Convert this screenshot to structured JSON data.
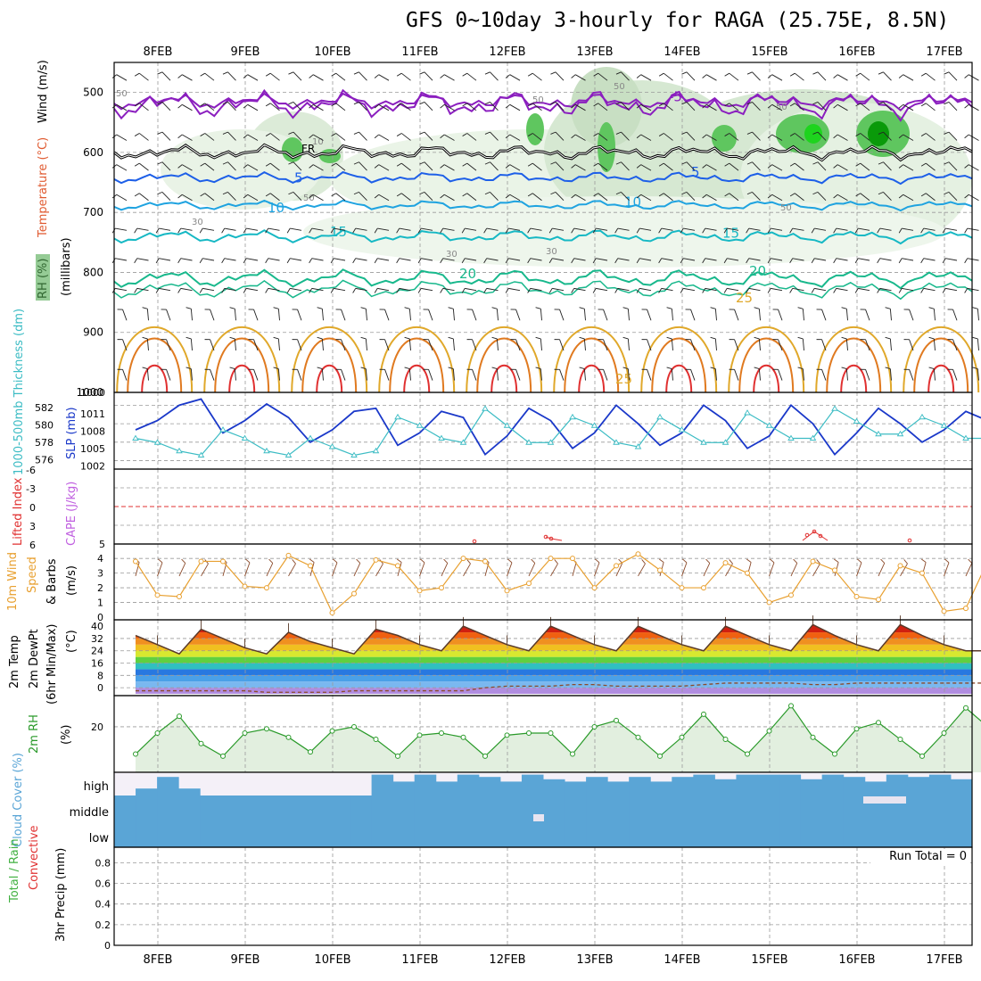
{
  "title": "GFS 0~10day 3-hourly for RAGA (25.75E, 8.5N)",
  "dates": [
    "8FEB",
    "9FEB",
    "10FEB",
    "11FEB",
    "12FEB",
    "13FEB",
    "14FEB",
    "15FEB",
    "16FEB",
    "17FEB"
  ],
  "colors": {
    "rh": "#4fa84f",
    "temp_cold": "#8b1fbf",
    "temp_5": "#1d5fe8",
    "temp_10": "#1fa3e0",
    "temp_15": "#16b8c4",
    "temp_20": "#18b88c",
    "temp_25": "#e0a82a",
    "temp_30": "#e07a20",
    "temp_35": "#e03030",
    "slp": "#1a38c9",
    "thickness": "#3cbcc4",
    "lifted": "#e03030",
    "cape": "#c060e0",
    "wind": "#e8a030",
    "barb": "#8b4a2a",
    "rh2m": "#2a9a2a",
    "cloud": "#5aa5d6",
    "precip": "#40b040"
  },
  "chart_data": [
    {
      "type": "heatmap",
      "panel": "upper-air",
      "ylabel_parts": [
        "RH (%)",
        "Temperature (°C)",
        "Wind (m/s)",
        "(millibars)"
      ],
      "yticks": [
        500,
        600,
        700,
        800,
        900,
        1000
      ],
      "ylim": [
        1000,
        450
      ],
      "isotherm_labels": [
        "-5",
        "5",
        "10",
        "15",
        "20",
        "25",
        "25"
      ],
      "rh_labels": [
        "50",
        "50",
        "50",
        "50",
        "30",
        "30",
        "30",
        "50",
        "50",
        "10"
      ],
      "freezing_label": "FR"
    },
    {
      "type": "line",
      "panel": "slp-thickness",
      "ylabel_left": "1000-500mb Thickness (dm)",
      "ylabel_right": "SLP (mb)",
      "left_ticks": [
        "582",
        "580",
        "578",
        "576"
      ],
      "right_ticks": [
        "1011",
        "1008",
        "1005",
        "1002"
      ],
      "slp_ylim": [
        1001.5,
        1012.5
      ],
      "thick_ylim": [
        575.5,
        583.5
      ],
      "x": [
        0.0,
        0.25,
        0.5,
        0.75,
        1.0,
        1.25,
        1.5,
        1.75,
        2.0,
        2.25,
        2.5,
        2.75,
        3.0,
        3.25,
        3.5,
        3.75,
        4.0,
        4.25,
        4.5,
        4.75,
        5.0,
        5.25,
        5.5,
        5.75,
        6.0,
        6.25,
        6.5,
        6.75,
        7.0,
        7.25,
        7.5,
        7.75,
        8.0,
        8.25,
        8.5,
        8.75,
        9.0,
        9.25,
        9.5,
        9.75
      ],
      "series": [
        {
          "name": "SLP",
          "values": [
            1007.0,
            1008.5,
            1011.0,
            1012.0,
            1006.5,
            1008.5,
            1011.2,
            1009.0,
            1005.0,
            1007.0,
            1010.0,
            1010.5,
            1004.5,
            1006.5,
            1010.0,
            1009.0,
            1003.0,
            1006.0,
            1010.5,
            1008.5,
            1004.0,
            1006.5,
            1011.0,
            1008.0,
            1004.5,
            1006.5,
            1011.0,
            1008.5,
            1004.0,
            1006.0,
            1011.0,
            1008.0,
            1003.0,
            1006.5,
            1010.5,
            1008.0,
            1005.0,
            1007.0,
            1010.0,
            1008.5
          ]
        },
        {
          "name": "Thickness",
          "values": [
            578.5,
            578.0,
            577.0,
            576.5,
            579.5,
            578.5,
            577.0,
            576.5,
            578.5,
            577.5,
            576.5,
            577.0,
            581.0,
            580.0,
            578.5,
            578.0,
            582.0,
            580.0,
            578.0,
            578.0,
            581.0,
            580.0,
            578.0,
            577.5,
            581.0,
            579.5,
            578.0,
            578.0,
            581.5,
            580.0,
            578.5,
            578.5,
            582.0,
            580.5,
            579.0,
            579.0,
            581.0,
            580.0,
            578.5,
            578.5
          ]
        }
      ]
    },
    {
      "type": "line",
      "panel": "stability",
      "ylabel_left": "Lifted Index",
      "ylabel_right": "CAPE (J/kg)",
      "left_ticks": [
        "-6",
        "-3",
        "0",
        "3",
        "6"
      ],
      "right_ticks": [
        "5"
      ],
      "lifted_reference": 0
    },
    {
      "type": "line",
      "panel": "wind10m",
      "ylabel": "10m Wind Speed & Barbs (m/s)",
      "yticks": [
        "4",
        "3",
        "2",
        "1",
        "0"
      ],
      "ylim": [
        0,
        4.8
      ],
      "x": [
        0.0,
        0.25,
        0.5,
        0.75,
        1.0,
        1.25,
        1.5,
        1.75,
        2.0,
        2.25,
        2.5,
        2.75,
        3.0,
        3.25,
        3.5,
        3.75,
        4.0,
        4.25,
        4.5,
        4.75,
        5.0,
        5.25,
        5.5,
        5.75,
        6.0,
        6.25,
        6.5,
        6.75,
        7.0,
        7.25,
        7.5,
        7.75,
        8.0,
        8.25,
        8.5,
        8.75,
        9.0,
        9.25,
        9.5,
        9.75
      ],
      "series": [
        {
          "name": "10m Wind Speed",
          "values": [
            3.8,
            1.5,
            1.4,
            3.8,
            3.8,
            2.1,
            2.0,
            4.2,
            3.5,
            0.3,
            1.6,
            3.9,
            3.5,
            1.8,
            2.0,
            4.0,
            3.8,
            1.8,
            2.3,
            4.0,
            4.0,
            2.0,
            3.5,
            4.3,
            3.2,
            2.0,
            2.0,
            3.7,
            3.0,
            1.0,
            1.5,
            3.8,
            3.2,
            1.4,
            1.2,
            3.5,
            3.0,
            0.4,
            0.6,
            3.8
          ]
        }
      ]
    },
    {
      "type": "area",
      "panel": "temp2m",
      "ylabel": "2m Temp 2m DewPt (6hr Min/Max) (°C)",
      "yticks": [
        "40",
        "32",
        "24",
        "16",
        "8",
        "0"
      ],
      "ylim": [
        -4,
        43
      ],
      "x": [
        0.0,
        0.25,
        0.5,
        0.75,
        1.0,
        1.25,
        1.5,
        1.75,
        2.0,
        2.25,
        2.5,
        2.75,
        3.0,
        3.25,
        3.5,
        3.75,
        4.0,
        4.25,
        4.5,
        4.75,
        5.0,
        5.25,
        5.5,
        5.75,
        6.0,
        6.25,
        6.5,
        6.75,
        7.0,
        7.25,
        7.5,
        7.75,
        8.0,
        8.25,
        8.5,
        8.75,
        9.0,
        9.25,
        9.5,
        9.75
      ],
      "series": [
        {
          "name": "2m Temp",
          "values": [
            34,
            28,
            22,
            38,
            32,
            26,
            22,
            36,
            30,
            26,
            22,
            38,
            34,
            28,
            24,
            40,
            34,
            28,
            24,
            40,
            34,
            28,
            24,
            40,
            34,
            28,
            24,
            40,
            34,
            28,
            24,
            41,
            34,
            28,
            24,
            41,
            34,
            28,
            24,
            24
          ]
        },
        {
          "name": "2m DewPt",
          "values": [
            -2,
            -2,
            -2,
            -2,
            -2,
            -2,
            -3,
            -3,
            -3,
            -3,
            -2,
            -2,
            -2,
            -2,
            -2,
            -2,
            0,
            1,
            1,
            1,
            2,
            2,
            1,
            1,
            1,
            1,
            2,
            3,
            3,
            3,
            3,
            2,
            2,
            3,
            3,
            3,
            3,
            3,
            3,
            3
          ]
        }
      ]
    },
    {
      "type": "area",
      "panel": "rh2m",
      "ylabel": "2m RH (%)",
      "yticks": [
        "20"
      ],
      "ylim": [
        0,
        34
      ],
      "x": [
        0.0,
        0.25,
        0.5,
        0.75,
        1.0,
        1.25,
        1.5,
        1.75,
        2.0,
        2.25,
        2.5,
        2.75,
        3.0,
        3.25,
        3.5,
        3.75,
        4.0,
        4.25,
        4.5,
        4.75,
        5.0,
        5.25,
        5.5,
        5.75,
        6.0,
        6.25,
        6.5,
        6.75,
        7.0,
        7.25,
        7.5,
        7.75,
        8.0,
        8.25,
        8.5,
        8.75,
        9.0,
        9.25,
        9.5,
        9.75
      ],
      "series": [
        {
          "name": "2m RH",
          "values": [
            7,
            17,
            25,
            12,
            6,
            17,
            19,
            15,
            8,
            18,
            20,
            14,
            6,
            16,
            17,
            15,
            6,
            16,
            17,
            17,
            7,
            20,
            23,
            15,
            6,
            15,
            26,
            14,
            7,
            18,
            30,
            15,
            7,
            19,
            22,
            14,
            6,
            17,
            29,
            20
          ]
        }
      ]
    },
    {
      "type": "bar",
      "panel": "cloud",
      "ylabel": "Cloud Cover (%)",
      "categories": [
        "high",
        "middle",
        "low"
      ],
      "x": [
        0.0,
        0.25,
        0.5,
        0.75,
        1.0,
        1.25,
        1.5,
        1.75,
        2.0,
        2.25,
        2.5,
        2.75,
        3.0,
        3.25,
        3.5,
        3.75,
        4.0,
        4.25,
        4.5,
        4.75,
        5.0,
        5.25,
        5.5,
        5.75,
        6.0,
        6.25,
        6.5,
        6.75,
        7.0,
        7.25,
        7.5,
        7.75,
        8.0,
        8.25,
        8.5,
        8.75,
        9.0,
        9.25,
        9.5,
        9.75
      ],
      "series": [
        {
          "name": "high",
          "values": [
            0,
            30,
            80,
            30,
            0,
            0,
            0,
            0,
            0,
            0,
            0,
            0,
            90,
            60,
            90,
            60,
            90,
            80,
            60,
            90,
            70,
            60,
            80,
            60,
            80,
            60,
            80,
            90,
            70,
            90,
            90,
            90,
            70,
            90,
            80,
            60,
            90,
            80,
            90,
            70
          ]
        },
        {
          "name": "middle",
          "values": [
            100,
            100,
            100,
            100,
            100,
            100,
            100,
            100,
            100,
            100,
            100,
            100,
            100,
            100,
            100,
            100,
            100,
            100,
            100,
            100,
            100,
            100,
            100,
            100,
            100,
            100,
            100,
            100,
            100,
            100,
            100,
            100,
            100,
            100,
            100,
            100,
            100,
            100,
            100,
            100
          ]
        },
        {
          "name": "low",
          "values": [
            100,
            100,
            100,
            100,
            100,
            100,
            100,
            100,
            100,
            100,
            100,
            100,
            100,
            100,
            100,
            100,
            100,
            100,
            100,
            100,
            100,
            100,
            100,
            100,
            100,
            100,
            100,
            100,
            100,
            100,
            100,
            100,
            100,
            100,
            100,
            100,
            100,
            100,
            100,
            100
          ]
        }
      ]
    },
    {
      "type": "bar",
      "panel": "precip",
      "ylabel_left": "Total / Rain Convective",
      "ylabel": "3hr Precip (mm)",
      "yticks": [
        "0.8",
        "0.6",
        "0.4",
        "0.2",
        "0"
      ],
      "ylim": [
        0,
        0.95
      ],
      "annotation": "Run Total = 0",
      "values": []
    }
  ]
}
